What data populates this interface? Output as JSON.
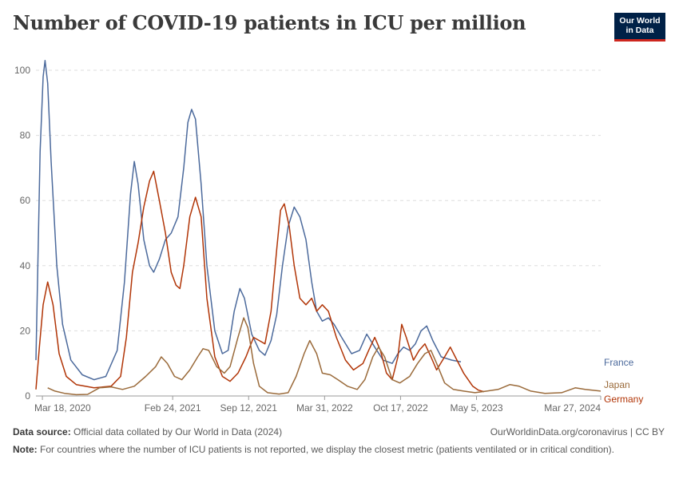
{
  "header": {
    "title": "Number of COVID-19 patients in ICU per million",
    "logo_line1": "Our World",
    "logo_line2": "in Data"
  },
  "footer": {
    "source_label": "Data source:",
    "source_text": "Official data collated by Our World in Data (2024)",
    "url_text": "OurWorldinData.org/coronavirus | CC BY",
    "note_label": "Note:",
    "note_text": "For countries where the number of ICU patients is not reported, we display the closest metric (patients ventilated or in critical condition)."
  },
  "chart_data": {
    "type": "line",
    "title": "Number of COVID-19 patients in ICU per million",
    "y_ticks": [
      0,
      20,
      40,
      60,
      80,
      100
    ],
    "ylim": [
      0,
      105
    ],
    "x_ticks": [
      "Mar 18, 2020",
      "Feb 24, 2021",
      "Sep 12, 2021",
      "Mar 31, 2022",
      "Oct 17, 2022",
      "May 5, 2023",
      "Mar 27, 2024"
    ],
    "grid": "horizontal dashed",
    "series": [
      {
        "name": "France",
        "color": "#4c6a9c",
        "points": [
          [
            "2020-03-01",
            11
          ],
          [
            "2020-03-12",
            75
          ],
          [
            "2020-03-20",
            98
          ],
          [
            "2020-03-25",
            103
          ],
          [
            "2020-04-01",
            96
          ],
          [
            "2020-04-10",
            72
          ],
          [
            "2020-04-25",
            40
          ],
          [
            "2020-05-10",
            22
          ],
          [
            "2020-06-01",
            11
          ],
          [
            "2020-07-01",
            6.5
          ],
          [
            "2020-08-01",
            5
          ],
          [
            "2020-09-01",
            6
          ],
          [
            "2020-10-01",
            14
          ],
          [
            "2020-10-20",
            35
          ],
          [
            "2020-11-05",
            62
          ],
          [
            "2020-11-15",
            72
          ],
          [
            "2020-11-25",
            65
          ],
          [
            "2020-12-10",
            48
          ],
          [
            "2020-12-25",
            40
          ],
          [
            "2021-01-05",
            38
          ],
          [
            "2021-01-20",
            42
          ],
          [
            "2021-02-05",
            48
          ],
          [
            "2021-02-20",
            50
          ],
          [
            "2021-03-10",
            55
          ],
          [
            "2021-03-25",
            70
          ],
          [
            "2021-04-05",
            84
          ],
          [
            "2021-04-15",
            88
          ],
          [
            "2021-04-25",
            85
          ],
          [
            "2021-05-10",
            65
          ],
          [
            "2021-05-25",
            40
          ],
          [
            "2021-06-15",
            20
          ],
          [
            "2021-07-05",
            13
          ],
          [
            "2021-07-20",
            14
          ],
          [
            "2021-08-05",
            26
          ],
          [
            "2021-08-20",
            33
          ],
          [
            "2021-09-01",
            30
          ],
          [
            "2021-09-20",
            19
          ],
          [
            "2021-10-10",
            14
          ],
          [
            "2021-10-25",
            12.5
          ],
          [
            "2021-11-10",
            17
          ],
          [
            "2021-11-25",
            25
          ],
          [
            "2021-12-10",
            40
          ],
          [
            "2021-12-25",
            52
          ],
          [
            "2022-01-10",
            58
          ],
          [
            "2022-01-25",
            55
          ],
          [
            "2022-02-10",
            48
          ],
          [
            "2022-02-25",
            35
          ],
          [
            "2022-03-10",
            26
          ],
          [
            "2022-03-25",
            23
          ],
          [
            "2022-04-10",
            24
          ],
          [
            "2022-04-25",
            22
          ],
          [
            "2022-05-15",
            18
          ],
          [
            "2022-06-10",
            13
          ],
          [
            "2022-07-01",
            14
          ],
          [
            "2022-07-20",
            19
          ],
          [
            "2022-08-10",
            15
          ],
          [
            "2022-09-01",
            11
          ],
          [
            "2022-09-25",
            10
          ],
          [
            "2022-10-10",
            13
          ],
          [
            "2022-10-25",
            15
          ],
          [
            "2022-11-10",
            14
          ],
          [
            "2022-11-25",
            16
          ],
          [
            "2022-12-10",
            20
          ],
          [
            "2022-12-25",
            21.5
          ],
          [
            "2023-01-10",
            17
          ],
          [
            "2023-02-01",
            12
          ],
          [
            "2023-03-01",
            11
          ],
          [
            "2023-03-25",
            10.5
          ]
        ]
      },
      {
        "name": "Germany",
        "color": "#b13507",
        "points": [
          [
            "2020-03-01",
            2
          ],
          [
            "2020-03-10",
            15
          ],
          [
            "2020-03-20",
            28
          ],
          [
            "2020-04-01",
            35
          ],
          [
            "2020-04-15",
            28
          ],
          [
            "2020-05-01",
            13
          ],
          [
            "2020-05-20",
            6
          ],
          [
            "2020-06-15",
            3.5
          ],
          [
            "2020-08-01",
            2.5
          ],
          [
            "2020-09-15",
            3
          ],
          [
            "2020-10-10",
            6
          ],
          [
            "2020-10-25",
            18
          ],
          [
            "2020-11-10",
            38
          ],
          [
            "2020-11-25",
            47
          ],
          [
            "2020-12-10",
            58
          ],
          [
            "2020-12-25",
            66
          ],
          [
            "2021-01-05",
            69
          ],
          [
            "2021-01-20",
            60
          ],
          [
            "2021-02-05",
            50
          ],
          [
            "2021-02-20",
            38
          ],
          [
            "2021-03-05",
            34
          ],
          [
            "2021-03-15",
            33
          ],
          [
            "2021-03-25",
            40
          ],
          [
            "2021-04-10",
            55
          ],
          [
            "2021-04-25",
            61
          ],
          [
            "2021-05-10",
            55
          ],
          [
            "2021-05-25",
            30
          ],
          [
            "2021-06-15",
            12
          ],
          [
            "2021-07-05",
            6
          ],
          [
            "2021-07-25",
            4.5
          ],
          [
            "2021-08-15",
            7
          ],
          [
            "2021-09-05",
            12
          ],
          [
            "2021-09-25",
            18
          ],
          [
            "2021-10-10",
            17
          ],
          [
            "2021-10-25",
            16
          ],
          [
            "2021-11-10",
            26
          ],
          [
            "2021-11-25",
            45
          ],
          [
            "2021-12-05",
            57
          ],
          [
            "2021-12-15",
            59
          ],
          [
            "2021-12-28",
            52
          ],
          [
            "2022-01-10",
            40
          ],
          [
            "2022-01-25",
            30
          ],
          [
            "2022-02-10",
            28
          ],
          [
            "2022-02-25",
            30
          ],
          [
            "2022-03-10",
            26
          ],
          [
            "2022-03-25",
            28
          ],
          [
            "2022-04-10",
            26
          ],
          [
            "2022-05-01",
            18
          ],
          [
            "2022-05-25",
            11
          ],
          [
            "2022-06-15",
            8
          ],
          [
            "2022-07-10",
            10
          ],
          [
            "2022-07-25",
            14
          ],
          [
            "2022-08-10",
            18
          ],
          [
            "2022-08-25",
            14
          ],
          [
            "2022-09-10",
            7
          ],
          [
            "2022-09-25",
            5
          ],
          [
            "2022-10-10",
            12
          ],
          [
            "2022-10-20",
            22
          ],
          [
            "2022-11-01",
            18
          ],
          [
            "2022-11-20",
            11
          ],
          [
            "2022-12-05",
            14
          ],
          [
            "2022-12-20",
            16
          ],
          [
            "2023-01-05",
            12
          ],
          [
            "2023-01-20",
            8
          ],
          [
            "2023-02-10",
            12
          ],
          [
            "2023-02-25",
            15
          ],
          [
            "2023-03-10",
            12
          ],
          [
            "2023-04-01",
            7
          ],
          [
            "2023-04-25",
            3
          ],
          [
            "2023-05-10",
            1.8
          ],
          [
            "2023-05-25",
            1.3
          ]
        ]
      },
      {
        "name": "Japan",
        "color": "#9a6a3a",
        "points": [
          [
            "2020-04-01",
            2.5
          ],
          [
            "2020-04-20",
            1.5
          ],
          [
            "2020-05-15",
            0.8
          ],
          [
            "2020-06-15",
            0.4
          ],
          [
            "2020-07-15",
            0.5
          ],
          [
            "2020-08-15",
            2.5
          ],
          [
            "2020-09-15",
            2.8
          ],
          [
            "2020-10-15",
            2
          ],
          [
            "2020-11-15",
            3
          ],
          [
            "2020-12-15",
            6
          ],
          [
            "2021-01-10",
            9
          ],
          [
            "2021-01-25",
            12
          ],
          [
            "2021-02-10",
            10
          ],
          [
            "2021-03-01",
            6
          ],
          [
            "2021-03-20",
            5
          ],
          [
            "2021-04-10",
            8
          ],
          [
            "2021-05-01",
            12
          ],
          [
            "2021-05-15",
            14.5
          ],
          [
            "2021-05-30",
            14
          ],
          [
            "2021-06-20",
            9
          ],
          [
            "2021-07-10",
            7
          ],
          [
            "2021-07-25",
            9
          ],
          [
            "2021-08-15",
            18
          ],
          [
            "2021-08-30",
            24
          ],
          [
            "2021-09-10",
            21
          ],
          [
            "2021-09-25",
            10
          ],
          [
            "2021-10-10",
            3
          ],
          [
            "2021-11-01",
            1
          ],
          [
            "2021-12-01",
            0.6
          ],
          [
            "2021-12-25",
            1
          ],
          [
            "2022-01-15",
            6
          ],
          [
            "2022-02-05",
            13
          ],
          [
            "2022-02-20",
            17
          ],
          [
            "2022-03-10",
            13
          ],
          [
            "2022-03-25",
            7
          ],
          [
            "2022-04-15",
            6.5
          ],
          [
            "2022-05-05",
            5
          ],
          [
            "2022-05-30",
            3
          ],
          [
            "2022-06-25",
            2
          ],
          [
            "2022-07-15",
            5
          ],
          [
            "2022-08-05",
            12
          ],
          [
            "2022-08-20",
            15
          ],
          [
            "2022-09-05",
            12
          ],
          [
            "2022-09-25",
            5
          ],
          [
            "2022-10-15",
            4
          ],
          [
            "2022-11-10",
            6
          ],
          [
            "2022-12-01",
            10
          ],
          [
            "2022-12-20",
            13
          ],
          [
            "2023-01-05",
            14
          ],
          [
            "2023-01-20",
            10
          ],
          [
            "2023-02-10",
            4
          ],
          [
            "2023-03-05",
            2
          ],
          [
            "2023-04-01",
            1.5
          ],
          [
            "2023-05-01",
            1
          ],
          [
            "2023-06-01",
            1.5
          ],
          [
            "2023-07-01",
            2
          ],
          [
            "2023-08-01",
            3.5
          ],
          [
            "2023-08-25",
            3
          ],
          [
            "2023-09-25",
            1.5
          ],
          [
            "2023-11-01",
            0.8
          ],
          [
            "2023-12-15",
            1
          ],
          [
            "2024-01-20",
            2.5
          ],
          [
            "2024-02-15",
            2
          ],
          [
            "2024-03-27",
            1.5
          ]
        ]
      }
    ]
  }
}
